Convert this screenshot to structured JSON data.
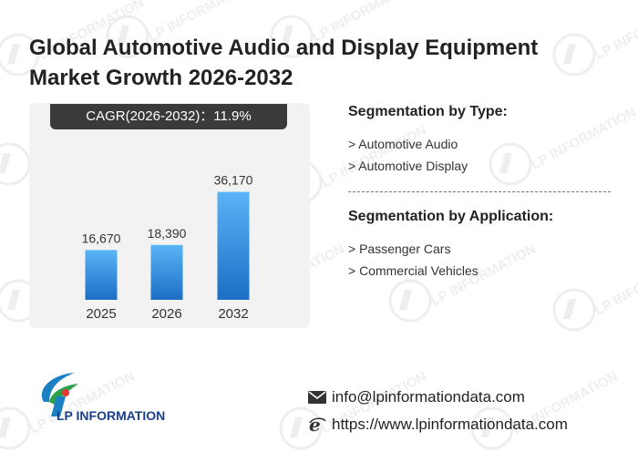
{
  "title_line1": "Global Automotive Audio and Display Equipment",
  "title_line2": "Market Growth 2026-2032",
  "cagr_label": "CAGR(2026-2032)：11.9%",
  "chart_data": {
    "type": "bar",
    "categories": [
      "2025",
      "2026",
      "2032"
    ],
    "values": [
      16670,
      18390,
      36170
    ],
    "value_labels": [
      "16,670",
      "18,390",
      "36,170"
    ],
    "ylim": [
      0,
      40000
    ],
    "grid": false,
    "bar_color_top": "#5ab4f5",
    "bar_color_bottom": "#1b6fc6"
  },
  "segmentation_type": {
    "heading": "Segmentation by Type:",
    "items": [
      "> Automotive Audio",
      "> Automotive Display"
    ]
  },
  "segmentation_application": {
    "heading": "Segmentation by Application:",
    "items": [
      "> Passenger Cars",
      "> Commercial Vehicles"
    ]
  },
  "logo": {
    "text": "LP INFORMATION",
    "icon": "lp-logo-icon"
  },
  "watermark_text": "LP INFORMATION",
  "contact": {
    "email": "info@lpinformationdata.com",
    "email_icon": "mail-icon",
    "website": "https://www.lpinformationdata.com",
    "website_icon": "web-icon"
  }
}
